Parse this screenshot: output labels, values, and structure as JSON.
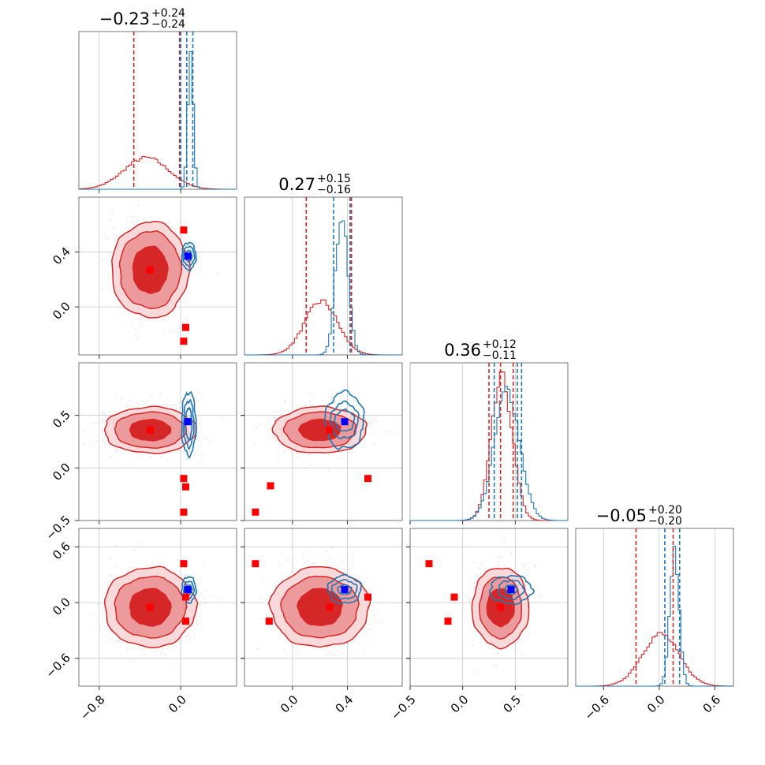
{
  "chart_data": {
    "type": "corner",
    "parameters": [
      {
        "range": [
          -1.0,
          0.55
        ],
        "ticks": [
          -0.8,
          0.0
        ],
        "tick_labels": [
          "−0.8",
          "0.0"
        ],
        "title": {
          "main": "−0.23",
          "upper": "+0.24",
          "lower": "−0.24"
        },
        "hist": {
          "red": {
            "center": -0.35,
            "sd": 0.22,
            "rel_height": 0.2
          },
          "blue": {
            "center": 0.085,
            "sd": 0.027,
            "rel_height": 0.9
          }
        },
        "quantiles_red": [
          -0.46,
          -0.01,
          0.0
        ],
        "quantiles_blue": [
          0.0,
          0.06,
          0.12
        ]
      },
      {
        "range": [
          -0.35,
          0.8
        ],
        "ticks": [
          0.0,
          0.4
        ],
        "tick_labels": [
          "0.0",
          "0.4"
        ],
        "title": {
          "main": "0.27",
          "upper": "+0.15",
          "lower": "−0.16"
        },
        "hist": {
          "red": {
            "center": 0.2,
            "sd": 0.12,
            "rel_height": 0.34
          },
          "blue": {
            "center": 0.35,
            "sd": 0.045,
            "rel_height": 0.9
          }
        },
        "quantiles_red": [
          0.1,
          0.42,
          0.43
        ],
        "quantiles_blue": [
          0.3,
          0.42
        ]
      },
      {
        "range": [
          -0.5,
          1.0
        ],
        "ticks": [
          -0.5,
          0.0,
          0.5
        ],
        "tick_labels": [
          "−0.5",
          "0.0",
          "0.5"
        ],
        "title": {
          "main": "0.36",
          "upper": "+0.12",
          "lower": "−0.11"
        },
        "hist": {
          "red": {
            "center": 0.36,
            "sd": 0.1,
            "rel_height": 0.9
          },
          "blue": {
            "center": 0.41,
            "sd": 0.12,
            "rel_height": 0.83
          }
        },
        "quantiles_red": [
          0.25,
          0.36,
          0.48
        ],
        "quantiles_blue": [
          0.3,
          0.52,
          0.56
        ]
      },
      {
        "range": [
          -0.9,
          0.8
        ],
        "ticks": [
          -0.6,
          0.0,
          0.6
        ],
        "tick_labels": [
          "−0.6",
          "0.0",
          "0.6"
        ],
        "title": {
          "main": "−0.05",
          "upper": "+0.20",
          "lower": "−0.20"
        },
        "hist": {
          "red": {
            "center": 0.0,
            "sd": 0.2,
            "rel_height": 0.33
          },
          "blue": {
            "center": 0.15,
            "sd": 0.05,
            "rel_height": 0.85
          }
        },
        "quantiles_red": [
          -0.25,
          0.15
        ],
        "quantiles_blue": [
          0.06,
          0.22
        ]
      }
    ],
    "pairs": [
      {
        "row": 1,
        "col": 0,
        "red": {
          "center": [
            -0.3,
            0.27
          ],
          "radii": [
            [
              0.17,
              0.17
            ],
            [
              0.3,
              0.28
            ],
            [
              0.38,
              0.35
            ]
          ]
        },
        "blue": {
          "center": [
            0.08,
            0.37
          ],
          "radii": [
            [
              0.03,
              0.04
            ],
            [
              0.055,
              0.07
            ],
            [
              0.07,
              0.1
            ]
          ]
        },
        "truth": [
          0.07,
          0.37
        ],
        "markers": [
          [
            -0.3,
            0.27
          ],
          [
            0.03,
            0.56
          ],
          [
            0.05,
            -0.15
          ],
          [
            0.03,
            -0.25
          ]
        ]
      },
      {
        "row": 2,
        "col": 0,
        "red": {
          "center": [
            -0.3,
            0.36
          ],
          "radii": [
            [
              0.2,
              0.1
            ],
            [
              0.35,
              0.17
            ],
            [
              0.45,
              0.22
            ]
          ]
        },
        "blue": {
          "center": [
            0.08,
            0.42
          ],
          "radii": [
            [
              0.03,
              0.15
            ],
            [
              0.05,
              0.22
            ],
            [
              0.07,
              0.3
            ]
          ]
        },
        "truth": [
          0.07,
          0.44
        ],
        "markers": [
          [
            -0.3,
            0.36
          ],
          [
            0.03,
            -0.1
          ],
          [
            0.05,
            -0.18
          ],
          [
            0.03,
            -0.42
          ]
        ]
      },
      {
        "row": 2,
        "col": 1,
        "red": {
          "center": [
            0.2,
            0.36
          ],
          "radii": [
            [
              0.15,
              0.1
            ],
            [
              0.26,
              0.17
            ],
            [
              0.34,
              0.22
            ]
          ]
        },
        "blue": {
          "center": [
            0.38,
            0.45
          ],
          "radii": [
            [
              0.07,
              0.1
            ],
            [
              0.1,
              0.17
            ],
            [
              0.14,
              0.27
            ]
          ]
        },
        "truth": [
          0.38,
          0.44
        ],
        "markers": [
          [
            0.27,
            0.36
          ],
          [
            -0.16,
            -0.17
          ],
          [
            -0.27,
            -0.42
          ],
          [
            0.55,
            -0.1
          ]
        ]
      },
      {
        "row": 3,
        "col": 0,
        "red": {
          "center": [
            -0.3,
            -0.05
          ],
          "radii": [
            [
              0.2,
              0.2
            ],
            [
              0.35,
              0.33
            ],
            [
              0.45,
              0.43
            ]
          ]
        },
        "blue": {
          "center": [
            0.08,
            0.14
          ],
          "radii": [
            [
              0.03,
              0.05
            ],
            [
              0.05,
              0.09
            ],
            [
              0.07,
              0.14
            ]
          ]
        },
        "truth": [
          0.07,
          0.14
        ],
        "markers": [
          [
            -0.3,
            -0.05
          ],
          [
            0.03,
            0.42
          ],
          [
            0.05,
            0.06
          ],
          [
            0.05,
            -0.2
          ]
        ]
      },
      {
        "row": 3,
        "col": 1,
        "red": {
          "center": [
            0.2,
            -0.05
          ],
          "radii": [
            [
              0.16,
              0.2
            ],
            [
              0.28,
              0.33
            ],
            [
              0.36,
              0.43
            ]
          ]
        },
        "blue": {
          "center": [
            0.38,
            0.14
          ],
          "radii": [
            [
              0.05,
              0.05
            ],
            [
              0.09,
              0.1
            ],
            [
              0.12,
              0.15
            ]
          ]
        },
        "truth": [
          0.38,
          0.14
        ],
        "markers": [
          [
            0.27,
            -0.05
          ],
          [
            -0.27,
            0.42
          ],
          [
            -0.17,
            -0.2
          ],
          [
            0.55,
            0.06
          ]
        ]
      },
      {
        "row": 3,
        "col": 2,
        "red": {
          "center": [
            0.36,
            -0.05
          ],
          "radii": [
            [
              0.13,
              0.2
            ],
            [
              0.2,
              0.33
            ],
            [
              0.27,
              0.43
            ]
          ]
        },
        "blue": {
          "center": [
            0.46,
            0.14
          ],
          "radii": [
            [
              0.06,
              0.05
            ],
            [
              0.12,
              0.1
            ],
            [
              0.2,
              0.15
            ]
          ]
        },
        "truth": [
          0.46,
          0.14
        ],
        "markers": [
          [
            0.36,
            -0.05
          ],
          [
            -0.32,
            0.42
          ],
          [
            -0.08,
            0.06
          ],
          [
            -0.14,
            -0.2
          ]
        ]
      }
    ],
    "grid": true,
    "colors": {
      "red": "#d62728",
      "red_mid": "#ec9a9b",
      "red_light": "#f9d9da",
      "blue": "#1f77b4",
      "truth": "#0000ff",
      "markers": "#ff0000"
    }
  }
}
